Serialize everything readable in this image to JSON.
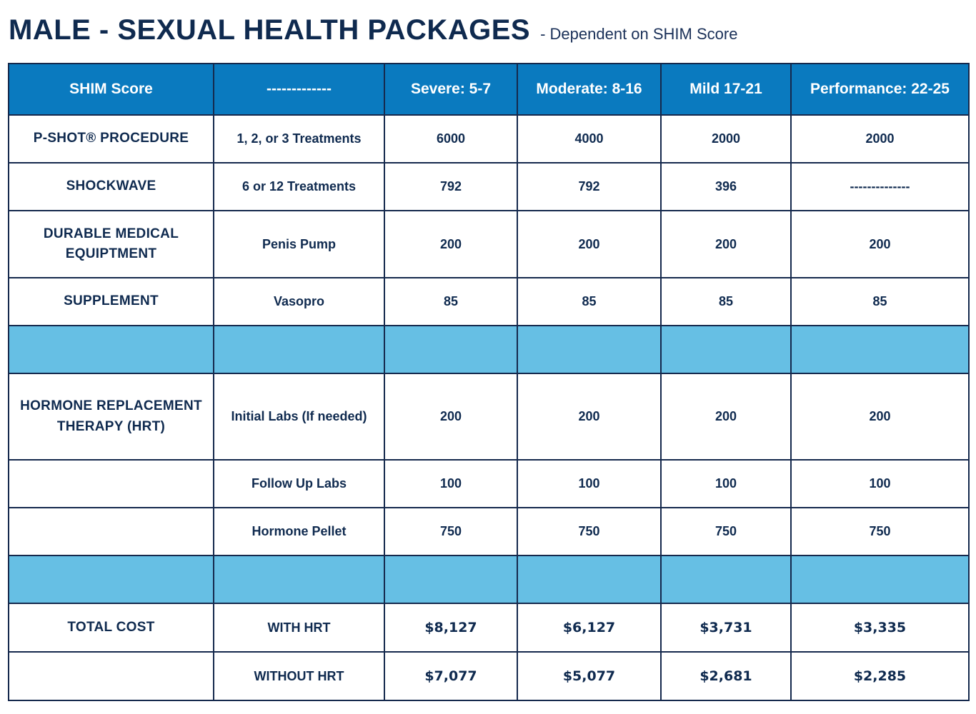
{
  "header": {
    "title": "MALE - SEXUAL HEALTH PACKAGES",
    "subtitle": "-  Dependent on SHIM Score"
  },
  "table": {
    "columns": [
      "SHIM Score",
      "-------------",
      "Severe: 5-7",
      "Moderate: 8-16",
      "Mild 17-21",
      "Performance: 22-25"
    ],
    "rows": [
      {
        "category": "P-SHOT® PROCEDURE",
        "item": "1, 2, or 3 Treatments",
        "values": [
          "6000",
          "4000",
          "2000",
          "2000"
        ]
      },
      {
        "category": "SHOCKWAVE",
        "item": "6 or 12 Treatments",
        "values": [
          "792",
          "792",
          "396",
          "--------------"
        ]
      },
      {
        "category": "DURABLE MEDICAL EQUIPTMENT",
        "item": "Penis Pump",
        "values": [
          "200",
          "200",
          "200",
          "200"
        ]
      },
      {
        "category": "SUPPLEMENT",
        "item": "Vasopro",
        "values": [
          "85",
          "85",
          "85",
          "85"
        ]
      },
      {
        "category": "HORMONE REPLACEMENT THERAPY (HRT)",
        "item": "Initial Labs (If needed)",
        "values": [
          "200",
          "200",
          "200",
          "200"
        ]
      },
      {
        "category": "",
        "item": "Follow Up Labs",
        "values": [
          "100",
          "100",
          "100",
          "100"
        ]
      },
      {
        "category": "",
        "item": "Hormone Pellet",
        "values": [
          "750",
          "750",
          "750",
          "750"
        ]
      },
      {
        "category": "TOTAL COST",
        "item": "WITH HRT",
        "values": [
          "$8,127",
          "$6,127",
          "$3,731",
          "$3,335"
        ]
      },
      {
        "category": "",
        "item": "WITHOUT HRT",
        "values": [
          "$7,077",
          "$5,077",
          "$2,681",
          "$2,285"
        ]
      }
    ]
  },
  "colors": {
    "header_bg": "#0a7abf",
    "spacer_bg": "#66bfe4",
    "text": "#0f2a4f",
    "border": "#15294d"
  }
}
